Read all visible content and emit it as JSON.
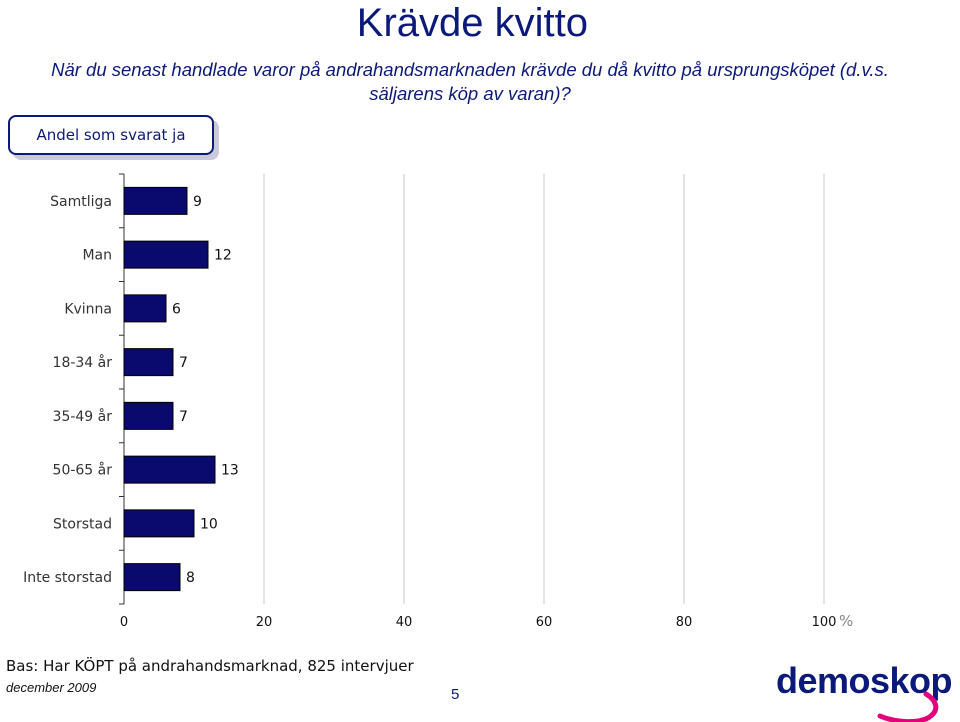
{
  "title": "Krävde kvitto",
  "question": "När du senast handlade varor på andrahandsmarknaden krävde du då kvitto på ursprungsköpet (d.v.s. säljarens köp av varan)?",
  "badge": "Andel som svarat ja",
  "chart_data": {
    "type": "bar",
    "orientation": "horizontal",
    "categories": [
      "Samtliga",
      "Man",
      "Kvinna",
      "18-34 år",
      "35-49 år",
      "50-65 år",
      "Storstad",
      "Inte storstad"
    ],
    "values": [
      9,
      12,
      6,
      7,
      7,
      13,
      10,
      8
    ],
    "xlim": [
      0,
      100
    ],
    "xticks": [
      "0",
      "20",
      "40",
      "60",
      "80",
      "100"
    ],
    "unit": "%",
    "bar_color": "#0a0a6e",
    "grid": true
  },
  "footer": {
    "base": "Bas: Har KÖPT på andrahandsmarknad, 825 intervjuer",
    "date": "december 2009",
    "page": "5",
    "logo": "demoskop"
  }
}
